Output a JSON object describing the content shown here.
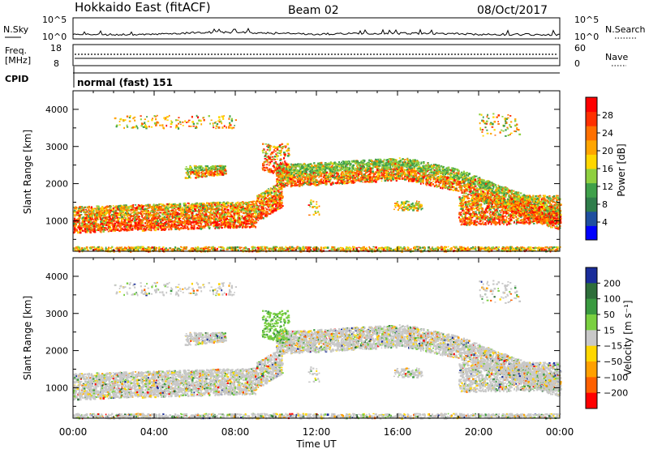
{
  "header": {
    "title": "Hokkaido East (fitACF)",
    "beam": "Beam 02",
    "date": "08/Oct/2017"
  },
  "nsky_panel": {
    "left_label": "N.Sky",
    "right_label": "N.Search",
    "ticks": [
      "10^5",
      "10^0"
    ]
  },
  "freq_panel": {
    "left_label_line1": "Freq.",
    "left_label_line2": "[MHz]",
    "left_ticks": [
      "18",
      "8"
    ],
    "right_label": "Nave",
    "right_ticks": [
      "60",
      "0"
    ]
  },
  "cpid_panel": {
    "label": "CPID",
    "value": "normal (fast) 151"
  },
  "chart_data": [
    {
      "type": "heatmap",
      "panel": "power",
      "ylabel": "Slant Range [km]",
      "yticks": [
        "4000",
        "3000",
        "2000",
        "1000"
      ],
      "ylim": [
        180,
        4500
      ],
      "xlim": [
        0,
        24
      ],
      "xticks": [],
      "colorbar": {
        "label": "Power [dB]",
        "ticks": [
          "28",
          "24",
          "20",
          "16",
          "12",
          "8",
          "4"
        ],
        "range": [
          0,
          32
        ],
        "colors": [
          "#0000ff",
          "#1f4fa0",
          "#2f7d4b",
          "#3fa04a",
          "#8fd040",
          "#ffd700",
          "#ffa500",
          "#ff7000",
          "#ff3000",
          "#ff0000"
        ]
      }
    },
    {
      "type": "heatmap",
      "panel": "velocity",
      "ylabel": "Slant Range [km]",
      "yticks": [
        "4000",
        "3000",
        "2000",
        "1000"
      ],
      "ylim": [
        180,
        4500
      ],
      "xlim": [
        0,
        24
      ],
      "xlabel": "Time UT",
      "xticks": [
        "00:00",
        "04:00",
        "08:00",
        "12:00",
        "16:00",
        "20:00",
        "00:00"
      ],
      "colorbar": {
        "label": "Velocity [m s⁻¹]",
        "ticks": [
          "200",
          "100",
          "50",
          "15",
          "−15",
          "−50",
          "−100",
          "−200"
        ],
        "colors": [
          "#1a2d9a",
          "#2e6e3a",
          "#3a9a40",
          "#7ad040",
          "#c8c8c8",
          "#ffd700",
          "#ffa000",
          "#ff6000",
          "#ff0000"
        ]
      }
    }
  ]
}
